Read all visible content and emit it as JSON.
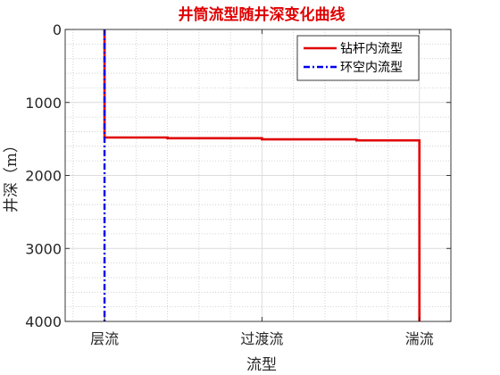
{
  "chart_data": {
    "type": "line",
    "title": "井筒流型随井深变化曲线",
    "xlabel": "流型",
    "ylabel": "井深（m）",
    "categories": [
      "层流",
      "过渡流",
      "湍流"
    ],
    "xlim": [
      -0.25,
      2.2
    ],
    "ylim": [
      0,
      4000
    ],
    "y_reversed": true,
    "yticks": [
      0,
      1000,
      2000,
      3000,
      4000
    ],
    "grid": true,
    "grid_style": "dotted",
    "legend_position": "top-right",
    "series": [
      {
        "name": "钻杆内流型",
        "color": "#e00000",
        "line_style": "solid",
        "x": [
          0,
          0,
          0.4,
          0.4,
          1.0,
          1.0,
          1.6,
          1.6,
          2.0,
          2.0
        ],
        "y": [
          0,
          1480,
          1480,
          1490,
          1490,
          1505,
          1505,
          1520,
          1520,
          4000
        ]
      },
      {
        "name": "环空内流型",
        "color": "#0000ee",
        "line_style": "dash-dot",
        "x": [
          0,
          0
        ],
        "y": [
          0,
          4000
        ]
      }
    ]
  }
}
